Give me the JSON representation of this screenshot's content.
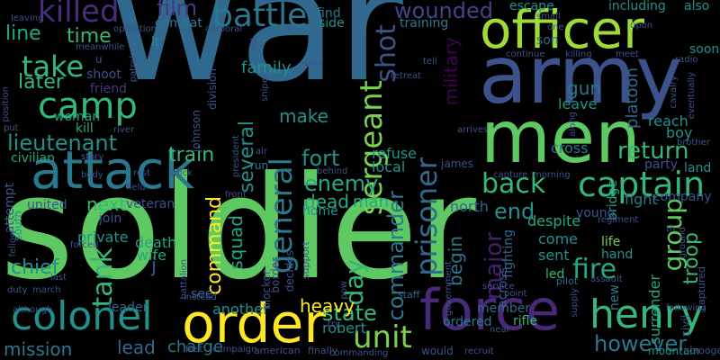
{
  "cloud": {
    "words": [
      {
        "text": "war",
        "color": "#31688e"
      },
      {
        "text": "soldier",
        "color": "#5ec962"
      },
      {
        "text": "army",
        "color": "#3b528b"
      },
      {
        "text": "men",
        "color": "#5ec962"
      },
      {
        "text": "officer",
        "color": "#a0da39"
      },
      {
        "text": "attack",
        "color": "#2a788e"
      },
      {
        "text": "force",
        "color": "#482878"
      },
      {
        "text": "order",
        "color": "#fde725"
      },
      {
        "text": "henry",
        "color": "#35b779"
      },
      {
        "text": "colonel",
        "color": "#21918c"
      },
      {
        "text": "camp",
        "color": "#35b779"
      },
      {
        "text": "battle",
        "color": "#2a788e"
      },
      {
        "text": "killed",
        "color": "#472d7b"
      },
      {
        "text": "captain",
        "color": "#35b779"
      },
      {
        "text": "sergeant",
        "color": "#7ad151"
      },
      {
        "text": "general",
        "color": "#2a788e"
      },
      {
        "text": "unit",
        "color": "#7ad151"
      },
      {
        "text": "take",
        "color": "#35b779"
      },
      {
        "text": "back",
        "color": "#35b779"
      },
      {
        "text": "prisoner",
        "color": "#31688e"
      },
      {
        "text": "lieutenant",
        "color": "#21918c"
      },
      {
        "text": "commander",
        "color": "#2a788e"
      },
      {
        "text": "group",
        "color": "#5ec962"
      },
      {
        "text": "return",
        "color": "#35b779"
      },
      {
        "text": "fire",
        "color": "#22a884"
      },
      {
        "text": "tank",
        "color": "#35b779"
      },
      {
        "text": "wounded",
        "color": "#414487"
      },
      {
        "text": "film",
        "color": "#443983"
      },
      {
        "text": "later",
        "color": "#35b779"
      },
      {
        "text": "line",
        "color": "#22a884"
      },
      {
        "text": "time",
        "color": "#35b779"
      },
      {
        "text": "state",
        "color": "#35b779"
      },
      {
        "text": "however",
        "color": "#2a788e"
      },
      {
        "text": "shot",
        "color": "#3b528b"
      },
      {
        "text": "military",
        "color": "#440154"
      },
      {
        "text": "fort",
        "color": "#21918c"
      },
      {
        "text": "train",
        "color": "#35b779"
      },
      {
        "text": "several",
        "color": "#21918c"
      },
      {
        "text": "enemy",
        "color": "#22a884"
      },
      {
        "text": "end",
        "color": "#21918c"
      },
      {
        "text": "day",
        "color": "#35b779"
      },
      {
        "text": "major",
        "color": "#481f70"
      },
      {
        "text": "command",
        "color": "#fde725"
      },
      {
        "text": "squad",
        "color": "#22a884"
      },
      {
        "text": "chief",
        "color": "#21918c"
      },
      {
        "text": "troop",
        "color": "#35b779"
      },
      {
        "text": "heavy",
        "color": "#fde725"
      },
      {
        "text": "mission",
        "color": "#2a788e"
      },
      {
        "text": "lead",
        "color": "#31688e"
      },
      {
        "text": "make",
        "color": "#21918c"
      },
      {
        "text": "family",
        "color": "#21918c"
      },
      {
        "text": "gun",
        "color": "#2a788e"
      },
      {
        "text": "begin",
        "color": "#2a788e"
      },
      {
        "text": "platoon",
        "color": "#31688e"
      },
      {
        "text": "j",
        "color": "#3b528b"
      },
      {
        "text": "next",
        "color": "#35b779"
      },
      {
        "text": "dead",
        "color": "#22a884"
      },
      {
        "text": "man",
        "color": "#22a884"
      },
      {
        "text": "charge",
        "color": "#2a788e"
      },
      {
        "text": "robert",
        "color": "#21918c"
      },
      {
        "text": "another",
        "color": "#21918c"
      },
      {
        "text": "refuse",
        "color": "#21918c"
      },
      {
        "text": "local",
        "color": "#21918c"
      },
      {
        "text": "north",
        "color": "#31688e"
      },
      {
        "text": "death",
        "color": "#22a884"
      },
      {
        "text": "wife",
        "color": "#22a884"
      },
      {
        "text": "private",
        "color": "#21918c"
      },
      {
        "text": "attempt",
        "color": "#3b528b"
      },
      {
        "text": "civilian",
        "color": "#22a884"
      },
      {
        "text": "woman",
        "color": "#22a884"
      },
      {
        "text": "kill",
        "color": "#22a884"
      },
      {
        "text": "friend",
        "color": "#443983"
      },
      {
        "text": "shoot",
        "color": "#3b528b"
      },
      {
        "text": "lt",
        "color": "#21918c"
      },
      {
        "text": "boy",
        "color": "#21918c"
      },
      {
        "text": "cross",
        "color": "#2a788e"
      },
      {
        "text": "fight",
        "color": "#2a788e"
      },
      {
        "text": "land",
        "color": "#21918c"
      },
      {
        "text": "party",
        "color": "#3b528b"
      },
      {
        "text": "company",
        "color": "#3b528b"
      },
      {
        "text": "reach",
        "color": "#21918c"
      },
      {
        "text": "leave",
        "color": "#21918c"
      },
      {
        "text": "bridge",
        "color": "#22a884"
      },
      {
        "text": "young",
        "color": "#3b528b"
      },
      {
        "text": "despite",
        "color": "#22a884"
      },
      {
        "text": "come",
        "color": "#21918c"
      },
      {
        "text": "sent",
        "color": "#21918c"
      },
      {
        "text": "life",
        "color": "#7ad151"
      },
      {
        "text": "hand",
        "color": "#21918c"
      },
      {
        "text": "led",
        "color": "#35b779"
      },
      {
        "text": "across",
        "color": "#3b528b"
      },
      {
        "text": "fighting",
        "color": "#31688e"
      },
      {
        "text": "ordered",
        "color": "#2a788e"
      },
      {
        "text": "member",
        "color": "#31688e"
      },
      {
        "text": "rifle",
        "color": "#35b779"
      },
      {
        "text": "surrender",
        "color": "#22a884"
      },
      {
        "text": "new",
        "color": "#2a788e"
      },
      {
        "text": "leader",
        "color": "#31688e"
      },
      {
        "text": "see",
        "color": "#31688e"
      },
      {
        "text": "home",
        "color": "#21918c"
      },
      {
        "text": "veteran",
        "color": "#3b528b"
      },
      {
        "text": "join",
        "color": "#3b528b"
      },
      {
        "text": "united",
        "color": "#3b528b"
      },
      {
        "text": "combat",
        "color": "#2a788e"
      },
      {
        "text": "training",
        "color": "#2a788e"
      },
      {
        "text": "escape",
        "color": "#21918c"
      },
      {
        "text": "side",
        "color": "#21918c"
      },
      {
        "text": "find",
        "color": "#2a788e"
      },
      {
        "text": "son",
        "color": "#31688e"
      },
      {
        "text": "including",
        "color": "#21918c"
      },
      {
        "text": "also",
        "color": "#21918c"
      },
      {
        "text": "soon",
        "color": "#21918c"
      },
      {
        "text": "james",
        "color": "#3b528b"
      },
      {
        "text": "run",
        "color": "#2a788e"
      },
      {
        "text": "south",
        "color": "#21918c"
      },
      {
        "text": "division",
        "color": "#3b528b"
      },
      {
        "text": "johnson",
        "color": "#3b528b"
      },
      {
        "text": "president",
        "color": "#3b528b"
      },
      {
        "text": "border",
        "color": "#3b528b"
      },
      {
        "text": "decides",
        "color": "#3b528b"
      },
      {
        "text": "blocker",
        "color": "#3b528b"
      },
      {
        "text": "support",
        "color": "#3b528b"
      },
      {
        "text": "would",
        "color": "#3b528b"
      },
      {
        "text": "mountain",
        "color": "#21918c"
      },
      {
        "text": "scrooge",
        "color": "#3b528b"
      },
      {
        "text": "civil",
        "color": "#3b528b"
      },
      {
        "text": "captured",
        "color": "#3b528b"
      },
      {
        "text": "government",
        "color": "#3b528b"
      },
      {
        "text": "pilot",
        "color": "#31688e"
      },
      {
        "text": "staff",
        "color": "#31688e"
      },
      {
        "text": "finally",
        "color": "#3b528b"
      },
      {
        "text": "american",
        "color": "#3b528b"
      },
      {
        "text": "campaign",
        "color": "#3b528b"
      },
      {
        "text": "first",
        "color": "#3b528b"
      },
      {
        "text": "instead",
        "color": "#3b528b"
      },
      {
        "text": "battalion",
        "color": "#3b528b"
      },
      {
        "text": "forced",
        "color": "#3b528b"
      },
      {
        "text": "last",
        "color": "#3b528b"
      },
      {
        "text": "although",
        "color": "#3b528b"
      },
      {
        "text": "duty",
        "color": "#3b528b"
      },
      {
        "text": "fellow",
        "color": "#3b528b"
      },
      {
        "text": "position",
        "color": "#3b528b"
      },
      {
        "text": "put",
        "color": "#3b528b"
      },
      {
        "text": "operation",
        "color": "#3b528b"
      },
      {
        "text": "corporal",
        "color": "#3b528b"
      },
      {
        "text": "patrol",
        "color": "#3b528b"
      },
      {
        "text": "river",
        "color": "#3b528b"
      },
      {
        "text": "story",
        "color": "#3b528b"
      },
      {
        "text": "air",
        "color": "#3b528b"
      },
      {
        "text": "front",
        "color": "#3b528b"
      },
      {
        "text": "capture",
        "color": "#3b528b"
      },
      {
        "text": "morning",
        "color": "#3b528b"
      },
      {
        "text": "arrives",
        "color": "#3b528b"
      },
      {
        "text": "retreat",
        "color": "#3b528b"
      },
      {
        "text": "tell",
        "color": "#3b528b"
      },
      {
        "text": "continue",
        "color": "#3b528b"
      },
      {
        "text": "killing",
        "color": "#3b528b"
      },
      {
        "text": "meet",
        "color": "#3b528b"
      },
      {
        "text": "radio",
        "color": "#3b528b"
      },
      {
        "text": "upon",
        "color": "#3b528b"
      },
      {
        "text": "cavalry",
        "color": "#3b528b"
      },
      {
        "text": "eventually",
        "color": "#3b528b"
      },
      {
        "text": "brother",
        "color": "#3b528b"
      },
      {
        "text": "regiment",
        "color": "#3b528b"
      },
      {
        "text": "ground",
        "color": "#3b528b"
      },
      {
        "text": "following",
        "color": "#3b528b"
      },
      {
        "text": "assault",
        "color": "#3b528b"
      },
      {
        "text": "supply",
        "color": "#3b528b"
      },
      {
        "text": "recruit",
        "color": "#3b528b"
      },
      {
        "text": "near",
        "color": "#3b528b"
      },
      {
        "text": "commanding",
        "color": "#3b528b"
      },
      {
        "text": "service",
        "color": "#3b528b"
      },
      {
        "text": "point",
        "color": "#3b528b"
      },
      {
        "text": "along",
        "color": "#3b528b"
      },
      {
        "text": "meanwhile",
        "color": "#3b528b"
      },
      {
        "text": "leaving",
        "color": "#3b528b"
      },
      {
        "text": "field",
        "color": "#3b528b"
      },
      {
        "text": "rest",
        "color": "#3b528b"
      },
      {
        "text": "mick",
        "color": "#3b528b"
      },
      {
        "text": "body",
        "color": "#3b528b"
      },
      {
        "text": "asks",
        "color": "#3b528b"
      },
      {
        "text": "behind",
        "color": "#3b528b"
      },
      {
        "text": "march",
        "color": "#3b528b"
      },
      {
        "text": "small",
        "color": "#3b528b"
      },
      {
        "text": "one",
        "color": "#3b528b"
      },
      {
        "text": "u",
        "color": "#3b528b"
      },
      {
        "text": "col",
        "color": "#3b528b"
      },
      {
        "text": "th",
        "color": "#3b528b"
      },
      {
        "text": "pow",
        "color": "#3b528b"
      },
      {
        "text": "try",
        "color": "#3b528b"
      },
      {
        "text": "sniper",
        "color": "#3b528b"
      }
    ]
  }
}
